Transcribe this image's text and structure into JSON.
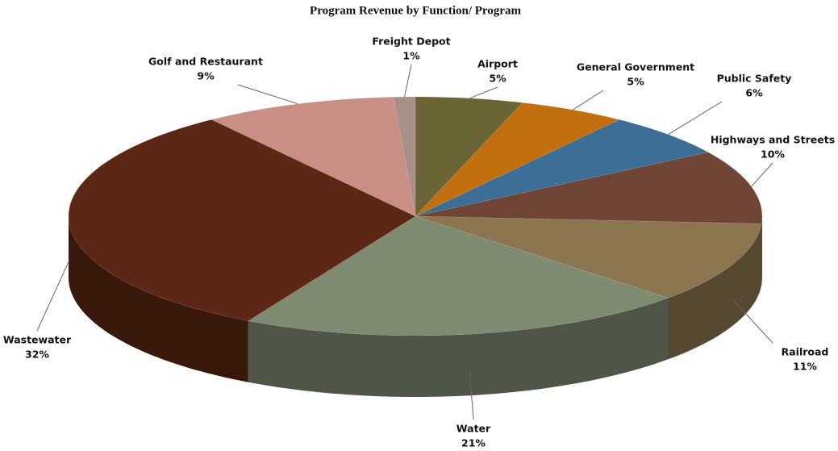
{
  "chart_data": {
    "type": "pie",
    "title": "Program Revenue by Function/ Program",
    "categories": [
      "Airport",
      "General Government",
      "Public Safety",
      "Highways and Streets",
      "Railroad",
      "Water",
      "Wastewater",
      "Golf and Restaurant",
      "Freight Depot"
    ],
    "values": [
      5,
      5,
      6,
      10,
      11,
      21,
      32,
      9,
      1
    ],
    "value_labels": [
      "5%",
      "5%",
      "6%",
      "10%",
      "11%",
      "21%",
      "32%",
      "9%",
      "1%"
    ],
    "colors": [
      "#6b6535",
      "#c2700f",
      "#3d6e96",
      "#714535",
      "#8b7650",
      "#7f8a72",
      "#5c2714",
      "#c98f84",
      "#a89088"
    ]
  }
}
